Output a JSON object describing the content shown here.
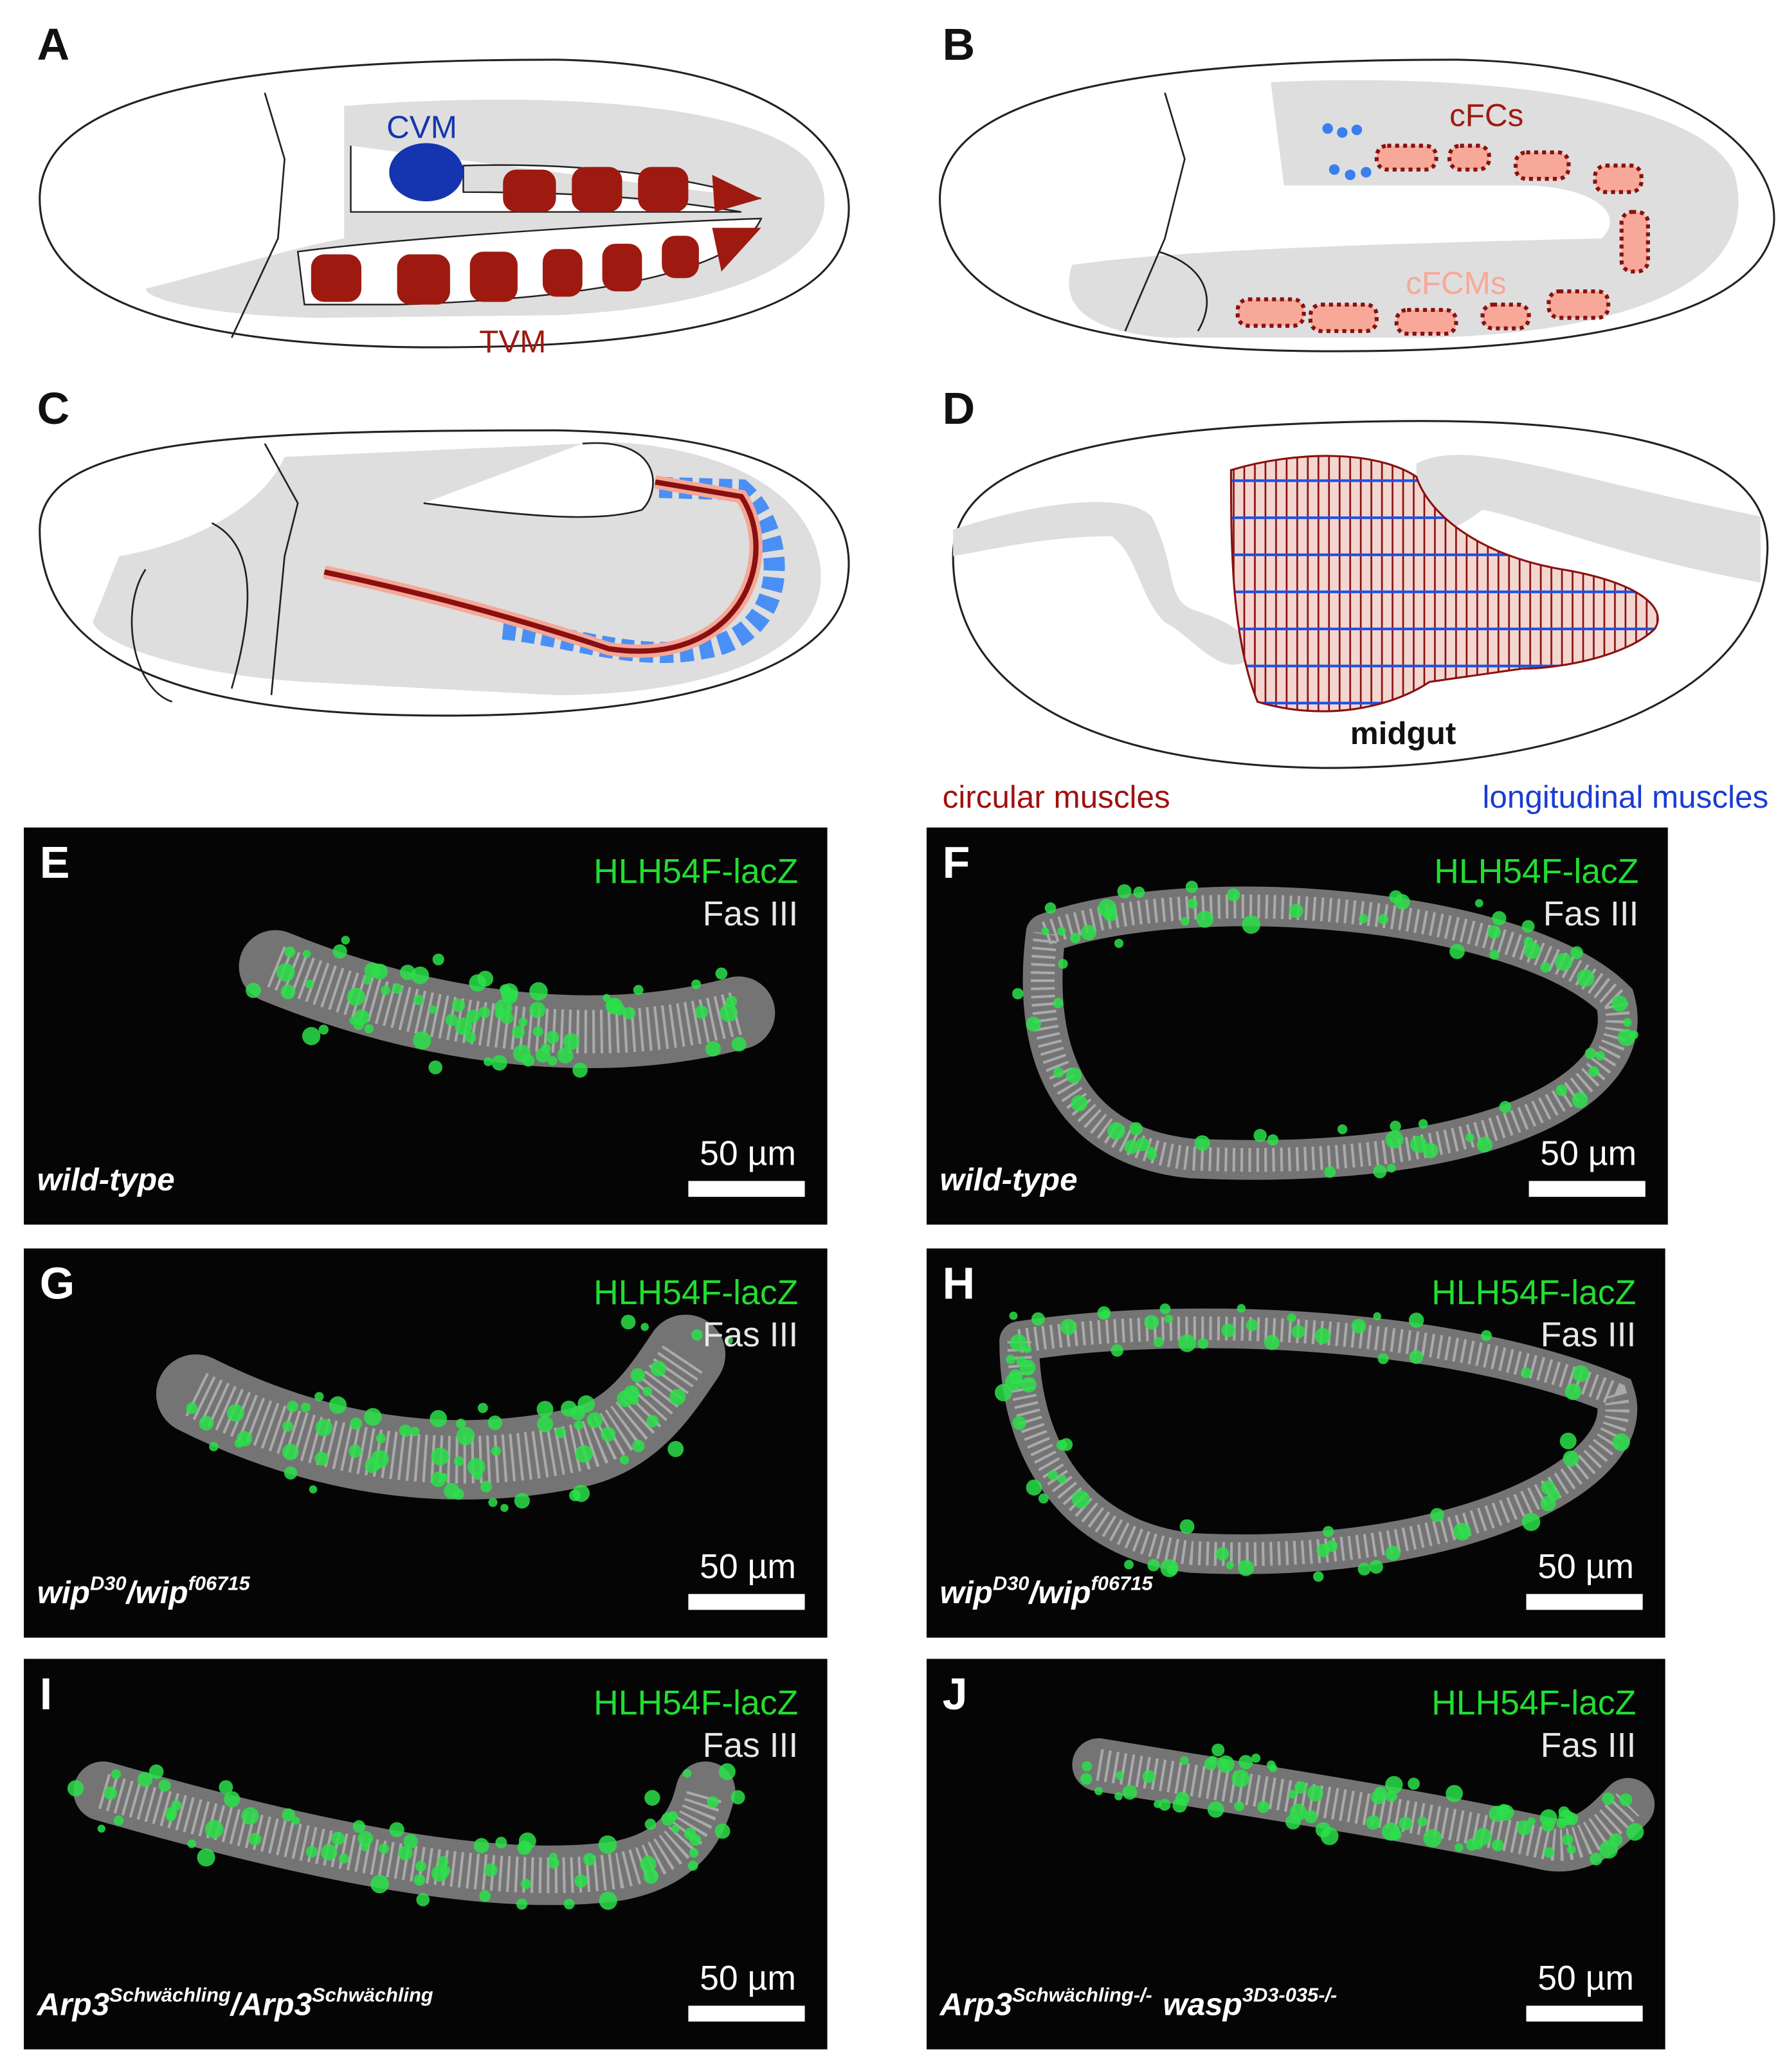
{
  "diagrams": [
    {
      "label": "A",
      "annotations": [
        "CVM",
        "TVM"
      ]
    },
    {
      "label": "B",
      "annotations": [
        "cFCs",
        "cFCMs"
      ]
    },
    {
      "label": "C"
    },
    {
      "label": "D",
      "annotations": [
        "midgut"
      ]
    }
  ],
  "legend": [
    "circular muscles",
    "longitudinal muscles"
  ],
  "micrographs": [
    {
      "label": "E",
      "stain_1": "HLH54F-lacZ",
      "stain_2": "Fas III",
      "scale_bar": "50 µm",
      "genotype": [
        {
          "text": "wild-type"
        }
      ]
    },
    {
      "label": "F",
      "stain_1": "HLH54F-lacZ",
      "stain_2": "Fas III",
      "scale_bar": "50 µm",
      "genotype": [
        {
          "text": "wild-type"
        }
      ]
    },
    {
      "label": "G",
      "stain_1": "HLH54F-lacZ",
      "stain_2": "Fas III",
      "scale_bar": "50 µm",
      "genotype": [
        {
          "text": "wip",
          "sup": "D30"
        },
        {
          "text": "/wip",
          "sup": "f06715"
        }
      ]
    },
    {
      "label": "H",
      "stain_1": "HLH54F-lacZ",
      "stain_2": "Fas III",
      "scale_bar": "50 µm",
      "genotype": [
        {
          "text": "wip",
          "sup": "D30"
        },
        {
          "text": "/wip",
          "sup": "f06715"
        }
      ]
    },
    {
      "label": "I",
      "stain_1": "HLH54F-lacZ",
      "stain_2": "Fas III",
      "scale_bar": "50 µm",
      "genotype": [
        {
          "text": "Arp3",
          "sup": "Schwächling"
        },
        {
          "text": "/Arp3",
          "sup": "Schwächling"
        }
      ]
    },
    {
      "label": "J",
      "stain_1": "HLH54F-lacZ",
      "stain_2": "Fas III",
      "scale_bar": "50 µm",
      "genotype": [
        {
          "text": "Arp3",
          "sup": "Schwächling-/-"
        },
        {
          "text": "wasp",
          "sup": "3D3-035-/-"
        }
      ]
    }
  ]
}
